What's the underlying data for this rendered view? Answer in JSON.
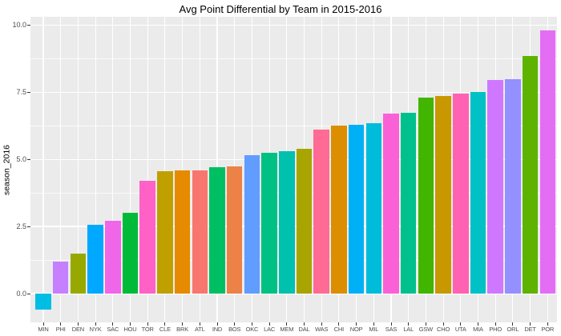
{
  "chart_data": {
    "type": "bar",
    "title": "Avg Point Differential by Team in 2015-2016",
    "xlabel": "",
    "ylabel": "season_2016",
    "categories": [
      "MIN",
      "PHI",
      "DEN",
      "NYK",
      "SAC",
      "HOU",
      "TOR",
      "CLE",
      "BRK",
      "ATL",
      "IND",
      "BOS",
      "OKC",
      "LAC",
      "MEM",
      "DAL",
      "WAS",
      "CHI",
      "NOP",
      "MIL",
      "SAS",
      "LAL",
      "GSW",
      "CHO",
      "UTA",
      "MIA",
      "PHO",
      "ORL",
      "DET",
      "POR"
    ],
    "values": [
      -0.6,
      1.2,
      1.5,
      2.55,
      2.7,
      3.0,
      4.2,
      4.55,
      4.6,
      4.6,
      4.7,
      4.75,
      5.15,
      5.25,
      5.3,
      5.4,
      6.1,
      6.25,
      6.3,
      6.35,
      6.7,
      6.75,
      7.3,
      7.35,
      7.45,
      7.5,
      7.95,
      8.0,
      8.85,
      9.8
    ],
    "bar_colors": [
      "#00BDE3",
      "#C57FFF",
      "#97A900",
      "#00A8FF",
      "#F066E8",
      "#00BA38",
      "#FF61C7",
      "#BFA000",
      "#E68A00",
      "#F8766D",
      "#00BF63",
      "#EC8247",
      "#619CFF",
      "#00C083",
      "#00C0AE",
      "#A8A400",
      "#FF6B94",
      "#DB8E00",
      "#00B0F6",
      "#00BCDB",
      "#FB61D7",
      "#00C08E",
      "#41B500",
      "#C99800",
      "#FF62B2",
      "#00C1C5",
      "#CF78FF",
      "#9590FF",
      "#5EB300",
      "#E36EF3"
    ],
    "ylim": [
      -1.07,
      10.31
    ],
    "yticks": [
      0,
      2.5,
      5,
      7.5,
      10
    ],
    "ytick_labels": [
      "0.0",
      "2.5",
      "5.0",
      "7.5",
      "10.0"
    ],
    "yticks_minor": [
      1.25,
      3.75,
      6.25,
      8.75
    ],
    "grid": true,
    "legend": "none",
    "colors": {
      "panel_bg": "#EBEBEB",
      "grid_major": "#FFFFFF",
      "grid_minor": "#FFFFFF",
      "tick_label": "#4D4D4D",
      "tick_mark": "#333333",
      "axis_title": "#000000",
      "title": "#000000",
      "plot_bg": "#FFFFFF"
    }
  }
}
